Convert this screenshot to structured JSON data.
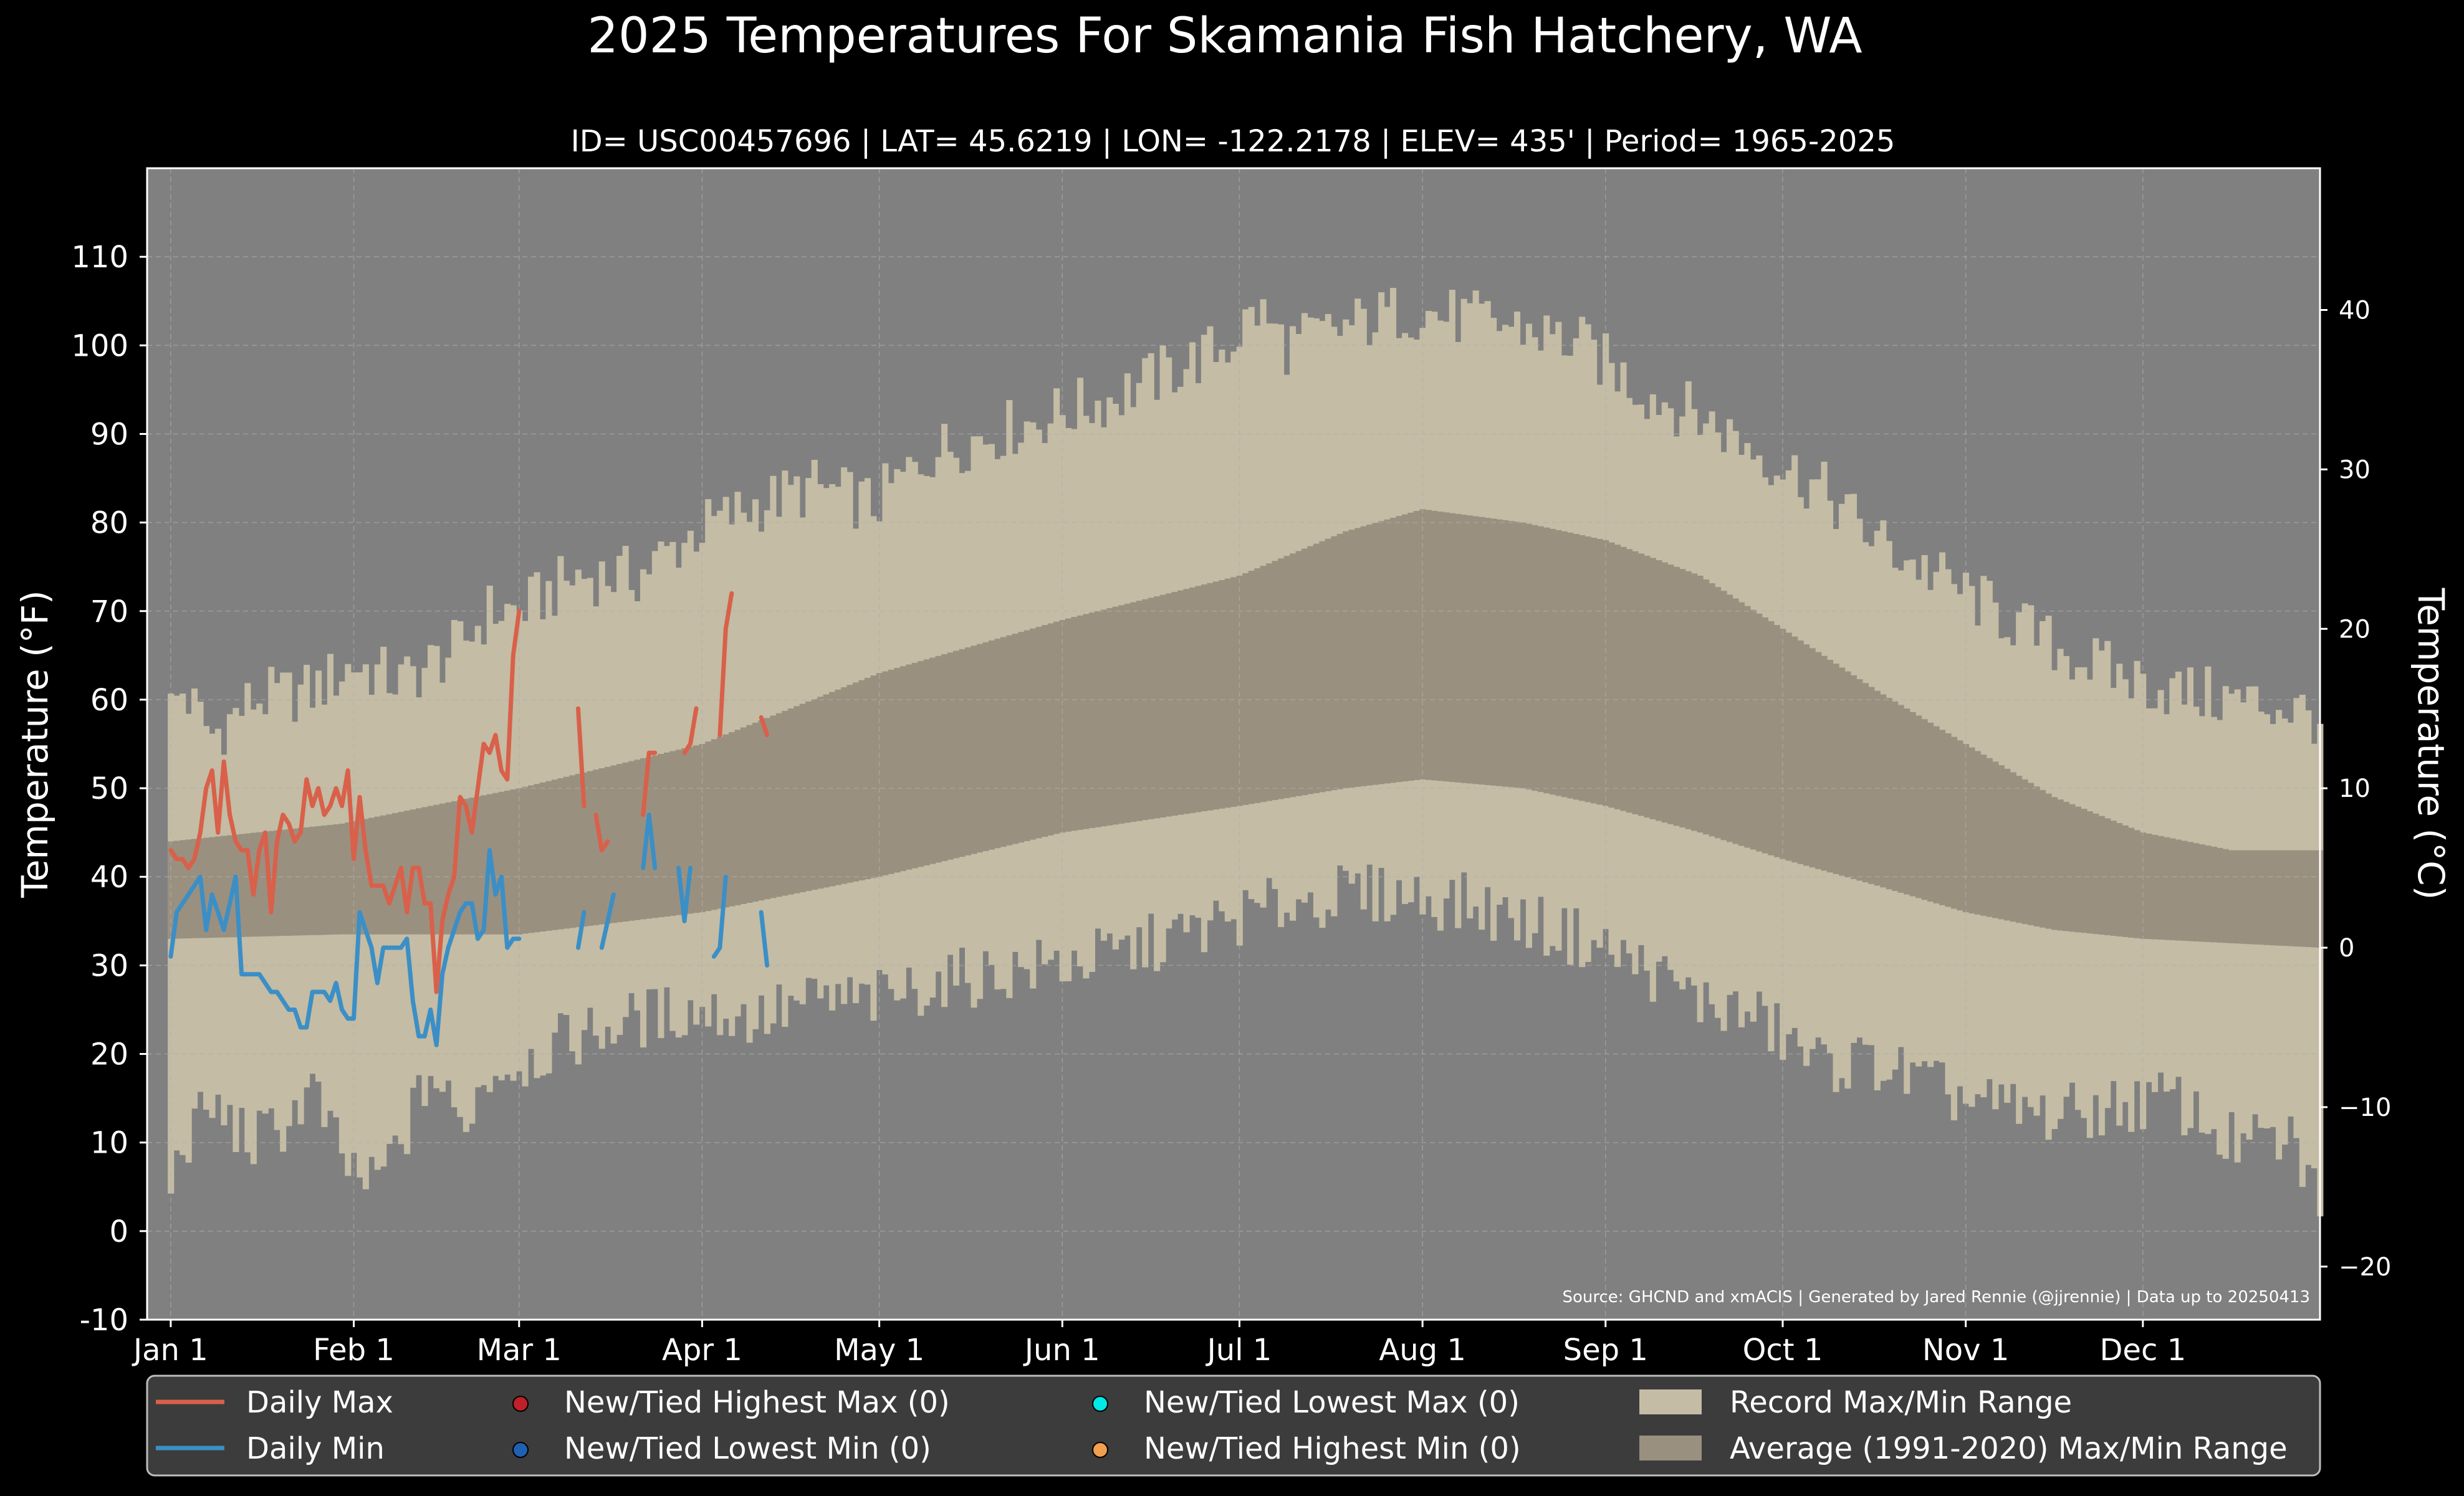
{
  "chart_data": {
    "type": "area",
    "title": "2025 Temperatures For Skamania Fish Hatchery, WA",
    "subtitle": "ID= USC00457696 | LAT= 45.6219 | LON= -122.2178 | ELEV= 435' | Period= 1965-2025",
    "ylabel": "Temperature ($^\\circ$F)",
    "ylabel_display": "Temperature (°F)",
    "y2label": "Temperature (°C)",
    "source": "Source: GHCND and xmACIS | Generated by Jared Rennie (@jjrennie) | Data up to 20250413",
    "ylim": [
      -10,
      120
    ],
    "y2lim_c": [
      -23.33,
      48.89
    ],
    "yticks": [
      -10,
      0,
      10,
      20,
      30,
      40,
      50,
      60,
      70,
      80,
      90,
      100,
      110
    ],
    "y2ticks": [
      -20,
      -10,
      0,
      10,
      20,
      30,
      40
    ],
    "xlim_day": [
      -3,
      365
    ],
    "x_ticks": [
      {
        "label": "Jan 1",
        "day": 1
      },
      {
        "label": "Feb 1",
        "day": 32
      },
      {
        "label": "Mar 1",
        "day": 60
      },
      {
        "label": "Apr 1",
        "day": 91
      },
      {
        "label": "May 1",
        "day": 121
      },
      {
        "label": "Jun 1",
        "day": 152
      },
      {
        "label": "Jul 1",
        "day": 182
      },
      {
        "label": "Aug 1",
        "day": 213
      },
      {
        "label": "Sep 1",
        "day": 244
      },
      {
        "label": "Oct 1",
        "day": 274
      },
      {
        "label": "Nov 1",
        "day": 305
      },
      {
        "label": "Dec 1",
        "day": 335
      }
    ],
    "grid": true,
    "legend_position": "bottom",
    "colors": {
      "background": "#000000",
      "plot_bg": "#808080",
      "record_range": "#c4bca4",
      "average_range": "#9a9080",
      "daily_max": "#d9604a",
      "daily_min": "#3b8fc6",
      "new_high_max": "#c0202a",
      "new_low_min": "#2060b0",
      "new_low_max": "#00e8e8",
      "new_high_min": "#f0a050",
      "legend_bg": "#3c3c3c",
      "grid": "#b0b0b0",
      "text": "#ffffff"
    },
    "record_max_anchors": [
      [
        1,
        59
      ],
      [
        3,
        61
      ],
      [
        8,
        56
      ],
      [
        15,
        60
      ],
      [
        25,
        61
      ],
      [
        32,
        64
      ],
      [
        40,
        62
      ],
      [
        50,
        66
      ],
      [
        55,
        70
      ],
      [
        60,
        70
      ],
      [
        70,
        74
      ],
      [
        80,
        74
      ],
      [
        90,
        79
      ],
      [
        100,
        82
      ],
      [
        110,
        84
      ],
      [
        120,
        82
      ],
      [
        130,
        88
      ],
      [
        140,
        90
      ],
      [
        150,
        92
      ],
      [
        160,
        94
      ],
      [
        170,
        97
      ],
      [
        180,
        100
      ],
      [
        185,
        104
      ],
      [
        190,
        100
      ],
      [
        200,
        102
      ],
      [
        210,
        104
      ],
      [
        220,
        103
      ],
      [
        230,
        102
      ],
      [
        240,
        100
      ],
      [
        250,
        95
      ],
      [
        260,
        92
      ],
      [
        270,
        88
      ],
      [
        280,
        84
      ],
      [
        290,
        78
      ],
      [
        300,
        74
      ],
      [
        310,
        70
      ],
      [
        320,
        66
      ],
      [
        330,
        63
      ],
      [
        340,
        61
      ],
      [
        350,
        60
      ],
      [
        360,
        59
      ],
      [
        365,
        58
      ]
    ],
    "record_min_anchors": [
      [
        1,
        5
      ],
      [
        3,
        10
      ],
      [
        8,
        14
      ],
      [
        15,
        10
      ],
      [
        20,
        12
      ],
      [
        25,
        16
      ],
      [
        30,
        8
      ],
      [
        35,
        5
      ],
      [
        40,
        10
      ],
      [
        45,
        18
      ],
      [
        50,
        12
      ],
      [
        55,
        18
      ],
      [
        60,
        19
      ],
      [
        70,
        22
      ],
      [
        80,
        24
      ],
      [
        90,
        25
      ],
      [
        100,
        24
      ],
      [
        110,
        26
      ],
      [
        120,
        26
      ],
      [
        130,
        28
      ],
      [
        140,
        29
      ],
      [
        150,
        30
      ],
      [
        160,
        31
      ],
      [
        170,
        33
      ],
      [
        180,
        35
      ],
      [
        190,
        37
      ],
      [
        200,
        38
      ],
      [
        210,
        38
      ],
      [
        220,
        37
      ],
      [
        230,
        35
      ],
      [
        240,
        33
      ],
      [
        250,
        30
      ],
      [
        260,
        26
      ],
      [
        270,
        24
      ],
      [
        280,
        19
      ],
      [
        290,
        19
      ],
      [
        300,
        16
      ],
      [
        310,
        14
      ],
      [
        320,
        13
      ],
      [
        330,
        14
      ],
      [
        340,
        15
      ],
      [
        350,
        10
      ],
      [
        360,
        10
      ],
      [
        365,
        4
      ]
    ],
    "avg_max_anchors": [
      [
        1,
        44
      ],
      [
        30,
        46
      ],
      [
        60,
        50
      ],
      [
        91,
        55
      ],
      [
        121,
        63
      ],
      [
        152,
        69
      ],
      [
        182,
        74
      ],
      [
        200,
        79
      ],
      [
        213,
        81.5
      ],
      [
        230,
        80
      ],
      [
        244,
        78
      ],
      [
        260,
        74
      ],
      [
        274,
        68
      ],
      [
        290,
        61
      ],
      [
        305,
        55
      ],
      [
        320,
        49
      ],
      [
        335,
        45
      ],
      [
        350,
        43
      ],
      [
        365,
        43
      ]
    ],
    "avg_min_anchors": [
      [
        1,
        33
      ],
      [
        30,
        33.5
      ],
      [
        60,
        33.5
      ],
      [
        91,
        36
      ],
      [
        121,
        40
      ],
      [
        152,
        45
      ],
      [
        182,
        48
      ],
      [
        200,
        50
      ],
      [
        213,
        51
      ],
      [
        230,
        50
      ],
      [
        244,
        48
      ],
      [
        260,
        45
      ],
      [
        274,
        42
      ],
      [
        290,
        39
      ],
      [
        305,
        36
      ],
      [
        320,
        34
      ],
      [
        335,
        33
      ],
      [
        365,
        32
      ]
    ],
    "series": [
      {
        "name": "Daily Max",
        "segments": [
          [
            [
              1,
              43
            ],
            [
              2,
              42
            ],
            [
              3,
              42
            ],
            [
              4,
              41
            ],
            [
              5,
              42
            ],
            [
              6,
              45
            ],
            [
              7,
              50
            ],
            [
              8,
              52
            ],
            [
              9,
              45
            ],
            [
              10,
              53
            ],
            [
              11,
              47
            ],
            [
              12,
              44
            ],
            [
              13,
              43
            ],
            [
              14,
              43
            ],
            [
              15,
              38
            ],
            [
              16,
              43
            ],
            [
              17,
              45
            ],
            [
              18,
              36
            ],
            [
              19,
              44
            ],
            [
              20,
              47
            ],
            [
              21,
              46
            ],
            [
              22,
              44
            ],
            [
              23,
              45
            ],
            [
              24,
              51
            ],
            [
              25,
              48
            ],
            [
              26,
              50
            ],
            [
              27,
              47
            ],
            [
              28,
              48
            ],
            [
              29,
              50
            ],
            [
              30,
              48
            ],
            [
              31,
              52
            ],
            [
              32,
              42
            ],
            [
              33,
              49
            ],
            [
              34,
              43
            ],
            [
              35,
              39
            ],
            [
              36,
              39
            ],
            [
              37,
              39
            ],
            [
              38,
              37
            ],
            [
              39,
              39
            ],
            [
              40,
              41
            ],
            [
              41,
              36
            ],
            [
              42,
              41
            ],
            [
              43,
              41
            ],
            [
              44,
              37
            ],
            [
              45,
              37
            ],
            [
              46,
              27
            ],
            [
              47,
              35
            ],
            [
              48,
              38
            ],
            [
              49,
              40
            ],
            [
              50,
              49
            ],
            [
              51,
              48
            ],
            [
              52,
              45
            ],
            [
              53,
              50
            ],
            [
              54,
              55
            ],
            [
              55,
              54
            ],
            [
              56,
              56
            ],
            [
              57,
              52
            ],
            [
              58,
              51
            ],
            [
              59,
              65
            ],
            [
              60,
              70
            ]
          ],
          [
            [
              70,
              59
            ],
            [
              71,
              48
            ]
          ],
          [
            [
              73,
              47
            ],
            [
              74,
              43
            ],
            [
              75,
              44
            ]
          ],
          [
            [
              81,
              47
            ],
            [
              82,
              54
            ],
            [
              83,
              54
            ]
          ],
          [
            [
              88,
              54
            ],
            [
              89,
              55
            ],
            [
              90,
              59
            ]
          ],
          [
            [
              94,
              56
            ],
            [
              95,
              68
            ],
            [
              96,
              72
            ]
          ],
          [
            [
              101,
              58
            ],
            [
              102,
              56
            ]
          ]
        ]
      },
      {
        "name": "Daily Min",
        "segments": [
          [
            [
              1,
              31
            ],
            [
              2,
              36
            ],
            [
              3,
              37
            ],
            [
              4,
              38
            ],
            [
              5,
              39
            ],
            [
              6,
              40
            ],
            [
              7,
              34
            ],
            [
              8,
              38
            ],
            [
              9,
              36
            ],
            [
              10,
              34
            ],
            [
              11,
              37
            ],
            [
              12,
              40
            ],
            [
              13,
              29
            ],
            [
              14,
              29
            ],
            [
              15,
              29
            ],
            [
              16,
              29
            ],
            [
              17,
              28
            ],
            [
              18,
              27
            ],
            [
              19,
              27
            ],
            [
              20,
              26
            ],
            [
              21,
              25
            ],
            [
              22,
              25
            ],
            [
              23,
              23
            ],
            [
              24,
              23
            ],
            [
              25,
              27
            ],
            [
              26,
              27
            ],
            [
              27,
              27
            ],
            [
              28,
              26
            ],
            [
              29,
              28
            ],
            [
              30,
              25
            ],
            [
              31,
              24
            ],
            [
              32,
              24
            ],
            [
              33,
              36
            ],
            [
              34,
              34
            ],
            [
              35,
              32
            ],
            [
              36,
              28
            ],
            [
              37,
              32
            ],
            [
              38,
              32
            ],
            [
              39,
              32
            ],
            [
              40,
              32
            ],
            [
              41,
              33
            ],
            [
              42,
              26
            ],
            [
              43,
              22
            ],
            [
              44,
              22
            ],
            [
              45,
              25
            ],
            [
              46,
              21
            ],
            [
              47,
              29
            ],
            [
              48,
              32
            ],
            [
              49,
              34
            ],
            [
              50,
              36
            ],
            [
              51,
              37
            ],
            [
              52,
              37
            ],
            [
              53,
              33
            ],
            [
              54,
              34
            ],
            [
              55,
              43
            ],
            [
              56,
              38
            ],
            [
              57,
              40
            ],
            [
              58,
              32
            ],
            [
              59,
              33
            ],
            [
              60,
              33
            ]
          ],
          [
            [
              70,
              32
            ],
            [
              71,
              36
            ]
          ],
          [
            [
              74,
              32
            ],
            [
              75,
              35
            ],
            [
              76,
              38
            ]
          ],
          [
            [
              81,
              41
            ],
            [
              82,
              47
            ],
            [
              83,
              41
            ]
          ],
          [
            [
              87,
              41
            ],
            [
              88,
              35
            ],
            [
              89,
              41
            ]
          ],
          [
            [
              93,
              31
            ],
            [
              94,
              32
            ],
            [
              95,
              40
            ]
          ],
          [
            [
              101,
              36
            ],
            [
              102,
              30
            ]
          ]
        ]
      }
    ],
    "legend": [
      {
        "label": "Daily Max",
        "kind": "line",
        "color": "#d9604a"
      },
      {
        "label": "Daily Min",
        "kind": "line",
        "color": "#3b8fc6"
      },
      {
        "label": "New/Tied Highest Max (0)",
        "kind": "dot",
        "color": "#c0202a"
      },
      {
        "label": "New/Tied Lowest Min (0)",
        "kind": "dot",
        "color": "#2060b0"
      },
      {
        "label": "New/Tied Lowest Max (0)",
        "kind": "dot",
        "color": "#00e8e8"
      },
      {
        "label": "New/Tied Highest Min (0)",
        "kind": "dot",
        "color": "#f0a050"
      },
      {
        "label": "Record Max/Min Range",
        "kind": "box",
        "color": "#c4bca4"
      },
      {
        "label": "Average (1991-2020) Max/Min Range",
        "kind": "box",
        "color": "#9a9080"
      }
    ]
  }
}
